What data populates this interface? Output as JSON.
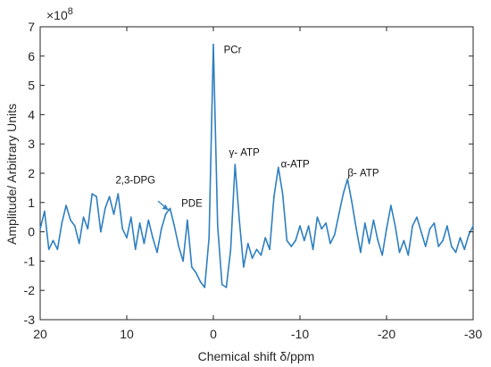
{
  "chart_data": {
    "type": "line",
    "title": "",
    "xlabel": "Chemical shift δ/ppm",
    "ylabel": "Amplitude/ Arbitrary Units",
    "y_multiplier": "×10",
    "y_multiplier_exp": "8",
    "xlim": [
      20,
      -30
    ],
    "ylim": [
      -3,
      7
    ],
    "x_reversed": true,
    "x_ticks": [
      20,
      10,
      0,
      -10,
      -20,
      -30
    ],
    "x_tick_labels": [
      "20",
      "10",
      "0",
      "-10",
      "-20",
      "-30"
    ],
    "y_ticks": [
      -3,
      -2,
      -1,
      0,
      1,
      2,
      3,
      4,
      5,
      6,
      7
    ],
    "y_tick_labels": [
      "-3",
      "-2",
      "-1",
      "0",
      "1",
      "2",
      "3",
      "4",
      "5",
      "6",
      "7"
    ],
    "grid": false,
    "line_color": "#2e7fc0",
    "series": [
      {
        "x": [
          20,
          19.5,
          19,
          18.5,
          18,
          17.5,
          17,
          16.5,
          16,
          15.5,
          15,
          14.5,
          14,
          13.5,
          13,
          12.5,
          12,
          11.5,
          11,
          10.5,
          10,
          9.5,
          9,
          8.5,
          8,
          7.5,
          7,
          6.5,
          6,
          5.5,
          5,
          4.5,
          4,
          3.5,
          3,
          2.5,
          2,
          1.5,
          1,
          0.5,
          0,
          -0.5,
          -1,
          -1.5,
          -2,
          -2.5,
          -3,
          -3.5,
          -4,
          -4.5,
          -5,
          -5.5,
          -6,
          -6.5,
          -7,
          -7.5,
          -8,
          -8.5,
          -9,
          -9.5,
          -10,
          -10.5,
          -11,
          -11.5,
          -12,
          -12.5,
          -13,
          -13.5,
          -14,
          -14.5,
          -15,
          -15.5,
          -16,
          -16.5,
          -17,
          -17.5,
          -18,
          -18.5,
          -19,
          -19.5,
          -20,
          -20.5,
          -21,
          -21.5,
          -22,
          -22.5,
          -23,
          -23.5,
          -24,
          -24.5,
          -25,
          -25.5,
          -26,
          -26.5,
          -27,
          -27.5,
          -28,
          -28.5,
          -29,
          -29.5,
          -30
        ],
        "y": [
          0.1,
          0.7,
          -0.6,
          -0.3,
          -0.6,
          0.3,
          0.9,
          0.4,
          0.2,
          -0.4,
          0.5,
          0.1,
          1.3,
          1.2,
          0.0,
          0.8,
          1.2,
          0.6,
          1.3,
          0.1,
          -0.2,
          0.5,
          -0.6,
          0.3,
          -0.4,
          0.4,
          -0.2,
          -0.7,
          0.1,
          0.6,
          0.8,
          0.2,
          -0.5,
          -1.0,
          0.4,
          -1.2,
          -1.4,
          -1.7,
          -1.9,
          -0.2,
          6.4,
          0.2,
          -1.8,
          -1.9,
          -0.6,
          2.3,
          0.4,
          -1.2,
          -0.4,
          -0.9,
          -0.6,
          -0.8,
          -0.2,
          -0.6,
          1.2,
          2.2,
          1.3,
          -0.3,
          -0.5,
          -0.3,
          0.2,
          -0.3,
          0.2,
          -0.6,
          0.5,
          0.1,
          0.3,
          -0.4,
          -0.1,
          0.6,
          1.3,
          1.8,
          1.0,
          0.1,
          -0.7,
          0.3,
          -0.4,
          0.4,
          -0.3,
          -0.8,
          0.1,
          0.9,
          0.2,
          -0.7,
          -0.3,
          -0.8,
          0.2,
          0.5,
          0.0,
          -0.5,
          0.1,
          0.3,
          -0.5,
          -0.3,
          0.2,
          -0.5,
          -0.7,
          -0.2,
          -0.6,
          -0.1,
          0.2
        ]
      }
    ],
    "annotations": [
      {
        "text": "PCr",
        "x": -1.2,
        "y": 6.1
      },
      {
        "text": "γ- ATP",
        "x": -1.8,
        "y": 2.6
      },
      {
        "text": "α-ATP",
        "x": -7.8,
        "y": 2.2
      },
      {
        "text": "β- ATP",
        "x": -15.5,
        "y": 1.9
      },
      {
        "text": "2,3-DPG",
        "x": 11.3,
        "y": 1.65
      },
      {
        "text": "PDE",
        "x": 3.7,
        "y": 0.85
      }
    ]
  }
}
